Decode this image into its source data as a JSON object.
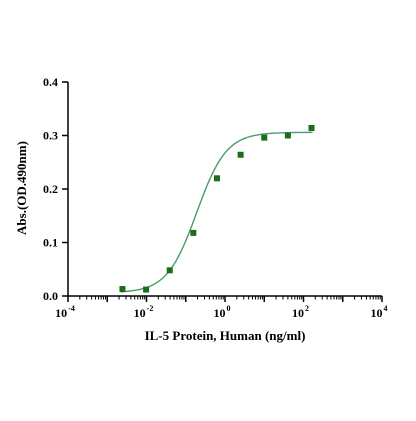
{
  "chart_data": {
    "type": "scatter",
    "xlabel": "IL-5 Protein, Human (ng/ml)",
    "ylabel": "Abs.(OD.490nm)",
    "xscale": "log",
    "xlim": [
      0.0001,
      10000
    ],
    "ylim": [
      0.0,
      0.4
    ],
    "grid": false,
    "legend": "none",
    "x_ticks": [
      {
        "base": "10",
        "exp": "-4"
      },
      {
        "base": "10",
        "exp": "-2"
      },
      {
        "base": "10",
        "exp": "0"
      },
      {
        "base": "10",
        "exp": "2"
      },
      {
        "base": "10",
        "exp": "4"
      }
    ],
    "y_ticks": [
      "0.0",
      "0.1",
      "0.2",
      "0.3",
      "0.4"
    ],
    "series": [
      {
        "type": "scatter",
        "color": "#1a6e1a",
        "marker": "square",
        "x": [
          0.00244,
          0.00977,
          0.0391,
          0.156,
          0.625,
          2.5,
          10,
          40,
          160
        ],
        "y": [
          0.013,
          0.012,
          0.048,
          0.118,
          0.22,
          0.264,
          0.296,
          0.3,
          0.314
        ]
      },
      {
        "type": "fit-curve",
        "color": "#4c9a6a",
        "model": "4PL",
        "bottom": 0.006,
        "top": 0.306,
        "ec50": 0.19,
        "hill": 1.15
      }
    ]
  }
}
